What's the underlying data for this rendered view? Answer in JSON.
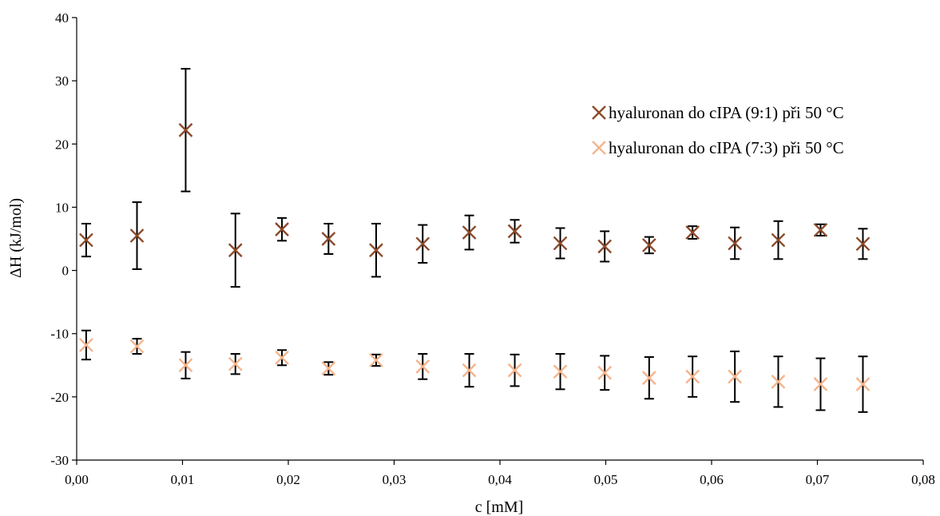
{
  "chart_data": {
    "type": "scatter",
    "xlabel": "c [mM]",
    "ylabel": "ΔH (kJ/mol)",
    "xlim": [
      0,
      0.08
    ],
    "ylim": [
      -30,
      40
    ],
    "x_ticks": [
      "0,00",
      "0,01",
      "0,02",
      "0,03",
      "0,04",
      "0,05",
      "0,06",
      "0,07",
      "0,08"
    ],
    "y_ticks": [
      "-30",
      "-20",
      "-10",
      "0",
      "10",
      "20",
      "30",
      "40"
    ],
    "grid": false,
    "legend_position": "right",
    "marker": "x",
    "series": [
      {
        "name": "hyaluronan do cIPA (9:1) při 50 °C",
        "color": "#8B4A2B",
        "points": [
          {
            "x": 0.0009,
            "y": 4.8,
            "err": 2.6
          },
          {
            "x": 0.0057,
            "y": 5.5,
            "err": 5.3
          },
          {
            "x": 0.0103,
            "y": 22.2,
            "err": 9.7
          },
          {
            "x": 0.015,
            "y": 3.2,
            "err": 5.8
          },
          {
            "x": 0.0194,
            "y": 6.5,
            "err": 1.8
          },
          {
            "x": 0.0238,
            "y": 5.0,
            "err": 2.4
          },
          {
            "x": 0.0283,
            "y": 3.2,
            "err": 4.2
          },
          {
            "x": 0.0327,
            "y": 4.2,
            "err": 3.0
          },
          {
            "x": 0.0371,
            "y": 6.0,
            "err": 2.7
          },
          {
            "x": 0.0414,
            "y": 6.2,
            "err": 1.8
          },
          {
            "x": 0.0457,
            "y": 4.3,
            "err": 2.4
          },
          {
            "x": 0.0499,
            "y": 3.8,
            "err": 2.4
          },
          {
            "x": 0.0541,
            "y": 4.0,
            "err": 1.3
          },
          {
            "x": 0.0582,
            "y": 6.0,
            "err": 1.0
          },
          {
            "x": 0.0622,
            "y": 4.3,
            "err": 2.5
          },
          {
            "x": 0.0663,
            "y": 4.8,
            "err": 3.0
          },
          {
            "x": 0.0703,
            "y": 6.4,
            "err": 0.9
          },
          {
            "x": 0.0743,
            "y": 4.2,
            "err": 2.4
          }
        ]
      },
      {
        "name": "hyaluronan do cIPA (7:3) při 50 °C",
        "color": "#F4B48C",
        "points": [
          {
            "x": 0.0009,
            "y": -11.8,
            "err": 2.3
          },
          {
            "x": 0.0057,
            "y": -12.0,
            "err": 1.2
          },
          {
            "x": 0.0103,
            "y": -15.0,
            "err": 2.1
          },
          {
            "x": 0.015,
            "y": -14.8,
            "err": 1.6
          },
          {
            "x": 0.0194,
            "y": -13.8,
            "err": 1.2
          },
          {
            "x": 0.0238,
            "y": -15.5,
            "err": 1.0
          },
          {
            "x": 0.0283,
            "y": -14.2,
            "err": 0.9
          },
          {
            "x": 0.0327,
            "y": -15.2,
            "err": 2.0
          },
          {
            "x": 0.0371,
            "y": -15.8,
            "err": 2.6
          },
          {
            "x": 0.0414,
            "y": -15.8,
            "err": 2.5
          },
          {
            "x": 0.0457,
            "y": -16.0,
            "err": 2.8
          },
          {
            "x": 0.0499,
            "y": -16.2,
            "err": 2.7
          },
          {
            "x": 0.0541,
            "y": -17.0,
            "err": 3.3
          },
          {
            "x": 0.0582,
            "y": -16.8,
            "err": 3.2
          },
          {
            "x": 0.0622,
            "y": -16.8,
            "err": 4.0
          },
          {
            "x": 0.0663,
            "y": -17.6,
            "err": 4.0
          },
          {
            "x": 0.0703,
            "y": -18.0,
            "err": 4.1
          },
          {
            "x": 0.0743,
            "y": -18.0,
            "err": 4.4
          }
        ]
      }
    ]
  }
}
